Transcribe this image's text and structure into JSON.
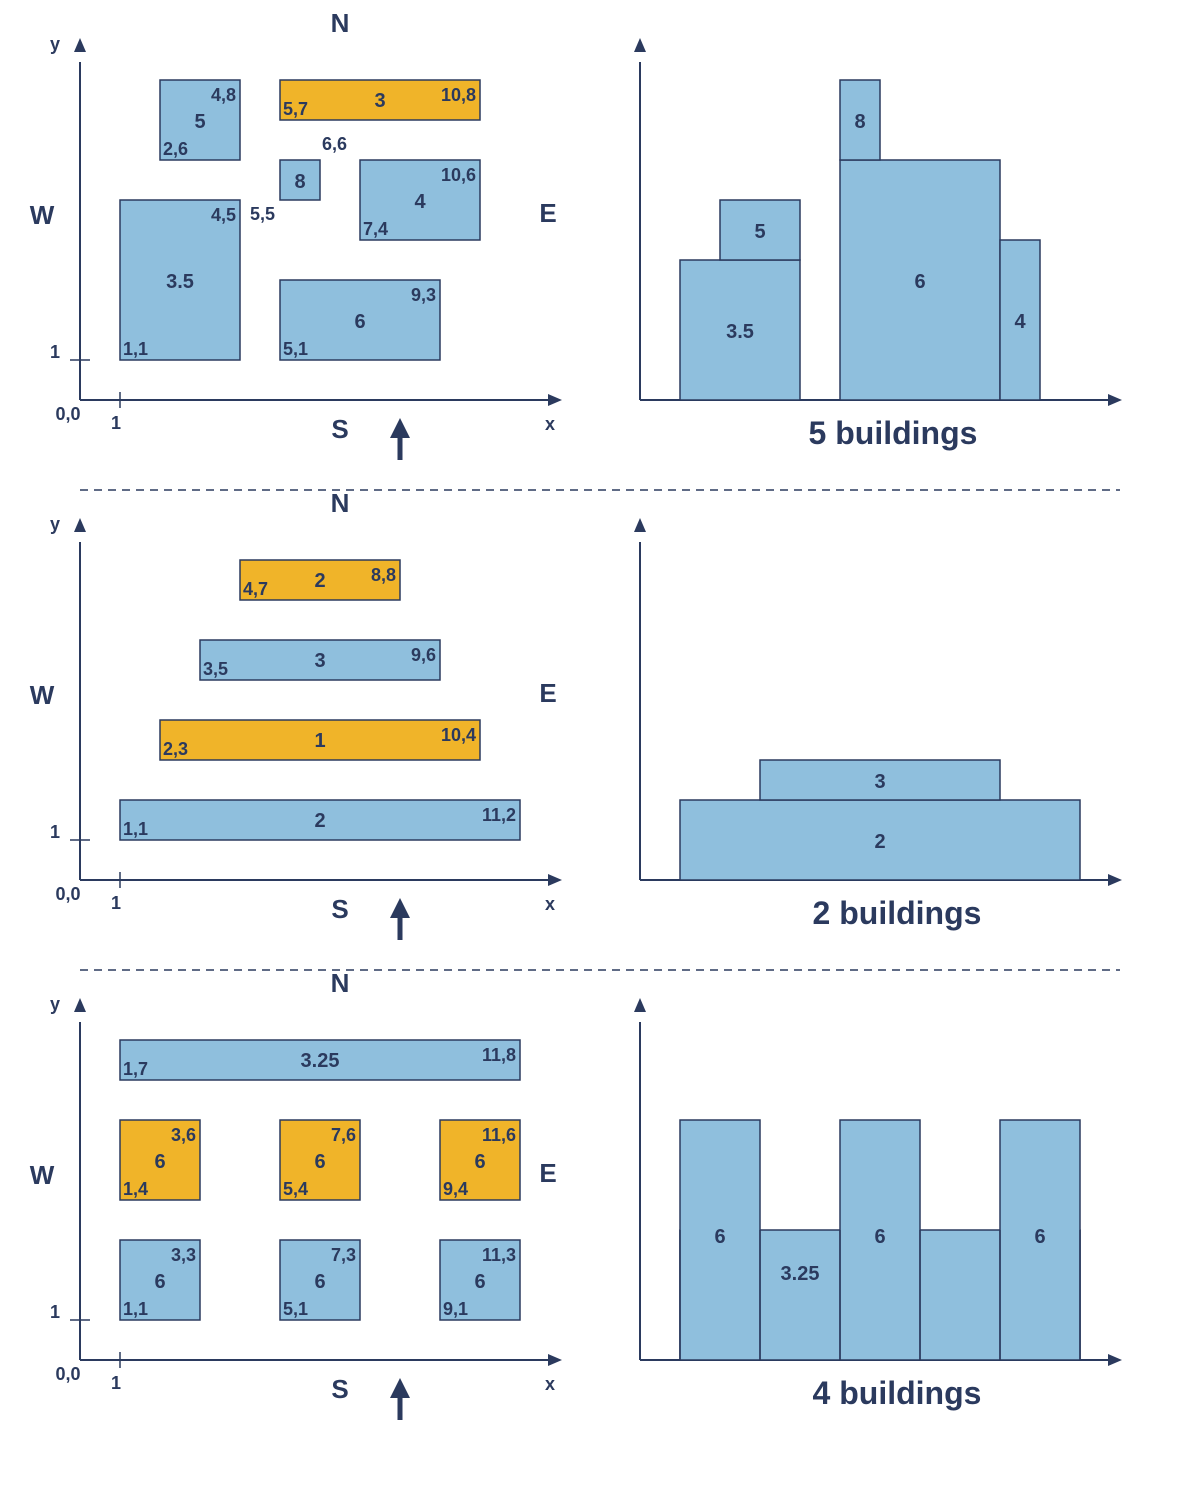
{
  "colors": {
    "blue_fill": "#8fbfdd",
    "orange_fill": "#f0b429",
    "stroke": "#2b3a5e",
    "text": "#2b3a5e",
    "axis": "#2b3a5e"
  },
  "icons": {
    "viewer_arrow": "up-arrow-icon"
  },
  "panels": [
    {
      "compass": {
        "n": "N",
        "s": "S",
        "w": "W",
        "e": "E"
      },
      "axis": {
        "y_label": "y",
        "x_label": "x",
        "origin_label": "0,0",
        "x_tick_label": "1",
        "y_tick_label": "1"
      },
      "caption": "5 buildings",
      "plan": [
        {
          "x1": 2,
          "y1": 6,
          "x2": 4,
          "y2": 8,
          "height": "5",
          "ll": "2,6",
          "ur": "4,8",
          "color": "blue"
        },
        {
          "x1": 5,
          "y1": 7,
          "x2": 10,
          "y2": 8,
          "height": "3",
          "ll": "5,7",
          "ur": "10,8",
          "color": "orange"
        },
        {
          "x1": 5,
          "y1": 5,
          "x2": 6,
          "y2": 6,
          "height": "8",
          "ll": "5,5",
          "ur": "6,6",
          "color": "blue",
          "outside": true
        },
        {
          "x1": 7,
          "y1": 4,
          "x2": 10,
          "y2": 6,
          "height": "4",
          "ll": "7,4",
          "ur": "10,6",
          "color": "blue"
        },
        {
          "x1": 1,
          "y1": 1,
          "x2": 4,
          "y2": 5,
          "height": "3.5",
          "ll": "1,1",
          "ur": "4,5",
          "color": "blue"
        },
        {
          "x1": 5,
          "y1": 1,
          "x2": 9,
          "y2": 3,
          "height": "6",
          "ll": "5,1",
          "ur": "9,3",
          "color": "blue"
        }
      ],
      "view": [
        {
          "x1": 1,
          "x2": 4,
          "h": 3.5,
          "label": "3.5"
        },
        {
          "x1": 2,
          "x2": 4,
          "h": 5,
          "base": 3.5,
          "label": "5"
        },
        {
          "x1": 5,
          "x2": 9,
          "h": 6,
          "label": "6"
        },
        {
          "x1": 5,
          "x2": 6,
          "h": 8,
          "base": 6,
          "label": "8"
        },
        {
          "x1": 9,
          "x2": 10,
          "h": 4,
          "label": "4"
        }
      ]
    },
    {
      "compass": {
        "n": "N",
        "s": "S",
        "w": "W",
        "e": "E"
      },
      "axis": {
        "y_label": "y",
        "x_label": "x",
        "origin_label": "0,0",
        "x_tick_label": "1",
        "y_tick_label": "1"
      },
      "caption": "2 buildings",
      "plan": [
        {
          "x1": 4,
          "y1": 7,
          "x2": 8,
          "y2": 8,
          "height": "2",
          "ll": "4,7",
          "ur": "8,8",
          "color": "orange"
        },
        {
          "x1": 3,
          "y1": 5,
          "x2": 9,
          "y2": 6,
          "height": "3",
          "ll": "3,5",
          "ur": "9,6",
          "color": "blue"
        },
        {
          "x1": 2,
          "y1": 3,
          "x2": 10,
          "y2": 4,
          "height": "1",
          "ll": "2,3",
          "ur": "10,4",
          "color": "orange"
        },
        {
          "x1": 1,
          "y1": 1,
          "x2": 11,
          "y2": 2,
          "height": "2",
          "ll": "1,1",
          "ur": "11,2",
          "color": "blue"
        }
      ],
      "view": [
        {
          "x1": 1,
          "x2": 11,
          "h": 2,
          "label": "2"
        },
        {
          "x1": 3,
          "x2": 9,
          "h": 3,
          "base": 2,
          "label": "3"
        }
      ]
    },
    {
      "compass": {
        "n": "N",
        "s": "S",
        "w": "W",
        "e": "E"
      },
      "axis": {
        "y_label": "y",
        "x_label": "x",
        "origin_label": "0,0",
        "x_tick_label": "1",
        "y_tick_label": "1"
      },
      "caption": "4 buildings",
      "plan": [
        {
          "x1": 1,
          "y1": 7,
          "x2": 11,
          "y2": 8,
          "height": "3.25",
          "ll": "1,7",
          "ur": "11,8",
          "color": "blue"
        },
        {
          "x1": 1,
          "y1": 4,
          "x2": 3,
          "y2": 6,
          "height": "6",
          "ll": "1,4",
          "ur": "3,6",
          "color": "orange"
        },
        {
          "x1": 5,
          "y1": 4,
          "x2": 7,
          "y2": 6,
          "height": "6",
          "ll": "5,4",
          "ur": "7,6",
          "color": "orange"
        },
        {
          "x1": 9,
          "y1": 4,
          "x2": 11,
          "y2": 6,
          "height": "6",
          "ll": "9,4",
          "ur": "11,6",
          "color": "orange"
        },
        {
          "x1": 1,
          "y1": 1,
          "x2": 3,
          "y2": 3,
          "height": "6",
          "ll": "1,1",
          "ur": "3,3",
          "color": "blue"
        },
        {
          "x1": 5,
          "y1": 1,
          "x2": 7,
          "y2": 3,
          "height": "6",
          "ll": "5,1",
          "ur": "7,3",
          "color": "blue"
        },
        {
          "x1": 9,
          "y1": 1,
          "x2": 11,
          "y2": 3,
          "height": "6",
          "ll": "9,1",
          "ur": "11,3",
          "color": "blue"
        }
      ],
      "view": [
        {
          "x1": 1,
          "x2": 11,
          "h": 3.25,
          "label": "3.25",
          "label_x1": 3,
          "label_x2": 5
        },
        {
          "x1": 1,
          "x2": 3,
          "h": 6,
          "label": "6"
        },
        {
          "x1": 5,
          "x2": 7,
          "h": 6,
          "label": "6"
        },
        {
          "x1": 9,
          "x2": 11,
          "h": 6,
          "label": "6"
        }
      ]
    }
  ]
}
